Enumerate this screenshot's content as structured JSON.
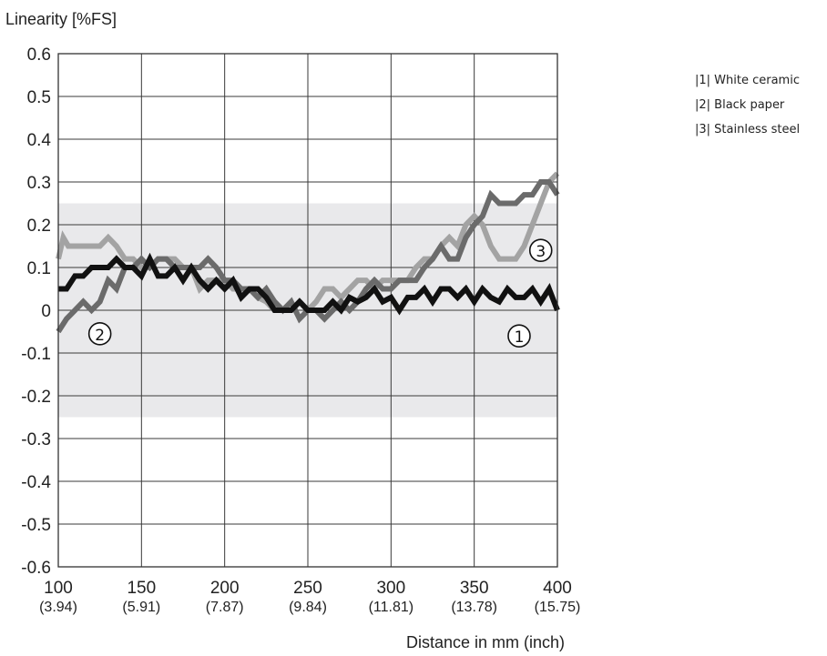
{
  "chart_data": {
    "type": "line",
    "ylabel": "Linearity [%FS]",
    "xlabel": "Distance in mm (inch)",
    "xlim": [
      100,
      400
    ],
    "ylim": [
      -0.6,
      0.6
    ],
    "x_ticks": [
      {
        "value": 100,
        "label": "100",
        "sub": "(3.94)"
      },
      {
        "value": 150,
        "label": "150",
        "sub": "(5.91)"
      },
      {
        "value": 200,
        "label": "200",
        "sub": "(7.87)"
      },
      {
        "value": 250,
        "label": "250",
        "sub": "(9.84)"
      },
      {
        "value": 300,
        "label": "300",
        "sub": "(11.81)"
      },
      {
        "value": 350,
        "label": "350",
        "sub": "(13.78)"
      },
      {
        "value": 400,
        "label": "400",
        "sub": "(15.75)"
      }
    ],
    "y_ticks": [
      {
        "value": 0.6,
        "label": "0.6"
      },
      {
        "value": 0.5,
        "label": "0.5"
      },
      {
        "value": 0.4,
        "label": "0.4"
      },
      {
        "value": 0.3,
        "label": "0.3"
      },
      {
        "value": 0.2,
        "label": "0.2"
      },
      {
        "value": 0.1,
        "label": "0.1"
      },
      {
        "value": 0,
        "label": "0"
      },
      {
        "value": -0.1,
        "label": "-0.1"
      },
      {
        "value": -0.2,
        "label": "-0.2"
      },
      {
        "value": -0.3,
        "label": "-0.3"
      },
      {
        "value": -0.4,
        "label": "-0.4"
      },
      {
        "value": -0.5,
        "label": "-0.5"
      },
      {
        "value": -0.6,
        "label": "-0.6"
      }
    ],
    "grid": true,
    "tolerance_band": {
      "min": -0.25,
      "max": 0.25,
      "color": "#e9e9eb"
    },
    "legend_position": "top-right",
    "legend": [
      {
        "key": "|1|",
        "label": "White ceramic"
      },
      {
        "key": "|2|",
        "label": "Black paper"
      },
      {
        "key": "|3|",
        "label": "Stainless steel"
      }
    ],
    "series": [
      {
        "name": "White ceramic",
        "marker": "①",
        "marker_at": [
          377,
          -0.06
        ],
        "color": "#a3a3a3",
        "width": 6,
        "x": [
          100,
          103,
          106,
          110,
          115,
          120,
          125,
          130,
          135,
          140,
          145,
          150,
          155,
          160,
          165,
          170,
          175,
          180,
          185,
          190,
          195,
          200,
          205,
          210,
          215,
          220,
          225,
          230,
          235,
          240,
          245,
          250,
          255,
          260,
          265,
          270,
          275,
          280,
          285,
          290,
          295,
          300,
          305,
          310,
          315,
          320,
          325,
          330,
          335,
          340,
          345,
          350,
          355,
          360,
          365,
          370,
          375,
          380,
          385,
          390,
          395,
          400
        ],
        "y": [
          0.12,
          0.17,
          0.15,
          0.15,
          0.15,
          0.15,
          0.15,
          0.17,
          0.15,
          0.12,
          0.12,
          0.1,
          0.1,
          0.12,
          0.12,
          0.12,
          0.1,
          0.1,
          0.05,
          0.07,
          0.07,
          0.07,
          0.05,
          0.05,
          0.05,
          0.03,
          0.02,
          0.0,
          0.0,
          0.0,
          0.02,
          0.0,
          0.02,
          0.05,
          0.05,
          0.03,
          0.05,
          0.07,
          0.07,
          0.05,
          0.07,
          0.07,
          0.07,
          0.07,
          0.1,
          0.12,
          0.12,
          0.15,
          0.17,
          0.15,
          0.2,
          0.22,
          0.2,
          0.15,
          0.12,
          0.12,
          0.12,
          0.15,
          0.2,
          0.25,
          0.3,
          0.32
        ]
      },
      {
        "name": "Black paper",
        "marker": "②",
        "marker_at": [
          125,
          -0.055
        ],
        "color": "#6b6b6b",
        "width": 6,
        "x": [
          100,
          105,
          110,
          115,
          120,
          125,
          130,
          135,
          140,
          145,
          150,
          155,
          160,
          165,
          170,
          175,
          180,
          185,
          190,
          195,
          200,
          205,
          210,
          215,
          220,
          225,
          230,
          235,
          240,
          245,
          250,
          255,
          260,
          265,
          270,
          275,
          280,
          285,
          290,
          295,
          300,
          305,
          310,
          315,
          320,
          325,
          330,
          335,
          340,
          345,
          350,
          355,
          360,
          365,
          370,
          375,
          380,
          385,
          390,
          395,
          400
        ],
        "y": [
          -0.05,
          -0.02,
          0.0,
          0.02,
          0.0,
          0.02,
          0.07,
          0.05,
          0.1,
          0.1,
          0.12,
          0.1,
          0.12,
          0.12,
          0.1,
          0.1,
          0.1,
          0.1,
          0.12,
          0.1,
          0.07,
          0.07,
          0.05,
          0.05,
          0.03,
          0.05,
          0.02,
          0.0,
          0.02,
          -0.02,
          0.0,
          0.0,
          -0.02,
          0.0,
          0.02,
          0.0,
          0.02,
          0.05,
          0.07,
          0.05,
          0.05,
          0.07,
          0.07,
          0.07,
          0.1,
          0.12,
          0.15,
          0.12,
          0.12,
          0.17,
          0.2,
          0.22,
          0.27,
          0.25,
          0.25,
          0.25,
          0.27,
          0.27,
          0.3,
          0.3,
          0.27
        ]
      },
      {
        "name": "Stainless steel",
        "marker": "③",
        "marker_at": [
          390,
          0.14
        ],
        "color": "#111111",
        "width": 6,
        "x": [
          100,
          105,
          110,
          115,
          120,
          125,
          130,
          135,
          140,
          145,
          150,
          155,
          160,
          165,
          170,
          175,
          180,
          185,
          190,
          195,
          200,
          205,
          210,
          215,
          220,
          225,
          230,
          235,
          240,
          245,
          250,
          255,
          260,
          265,
          270,
          275,
          280,
          285,
          290,
          295,
          300,
          305,
          310,
          315,
          320,
          325,
          330,
          335,
          340,
          345,
          350,
          355,
          360,
          365,
          370,
          375,
          380,
          385,
          390,
          395,
          400
        ],
        "y": [
          0.05,
          0.05,
          0.08,
          0.08,
          0.1,
          0.1,
          0.1,
          0.12,
          0.1,
          0.1,
          0.08,
          0.12,
          0.08,
          0.08,
          0.1,
          0.07,
          0.1,
          0.07,
          0.05,
          0.07,
          0.05,
          0.07,
          0.03,
          0.05,
          0.05,
          0.03,
          0.0,
          0.0,
          0.0,
          0.02,
          0.0,
          0.0,
          0.0,
          0.02,
          0.0,
          0.03,
          0.02,
          0.03,
          0.05,
          0.02,
          0.03,
          0.0,
          0.03,
          0.03,
          0.05,
          0.02,
          0.05,
          0.05,
          0.03,
          0.05,
          0.02,
          0.05,
          0.03,
          0.02,
          0.05,
          0.03,
          0.03,
          0.05,
          0.02,
          0.05,
          0.0
        ]
      }
    ]
  }
}
